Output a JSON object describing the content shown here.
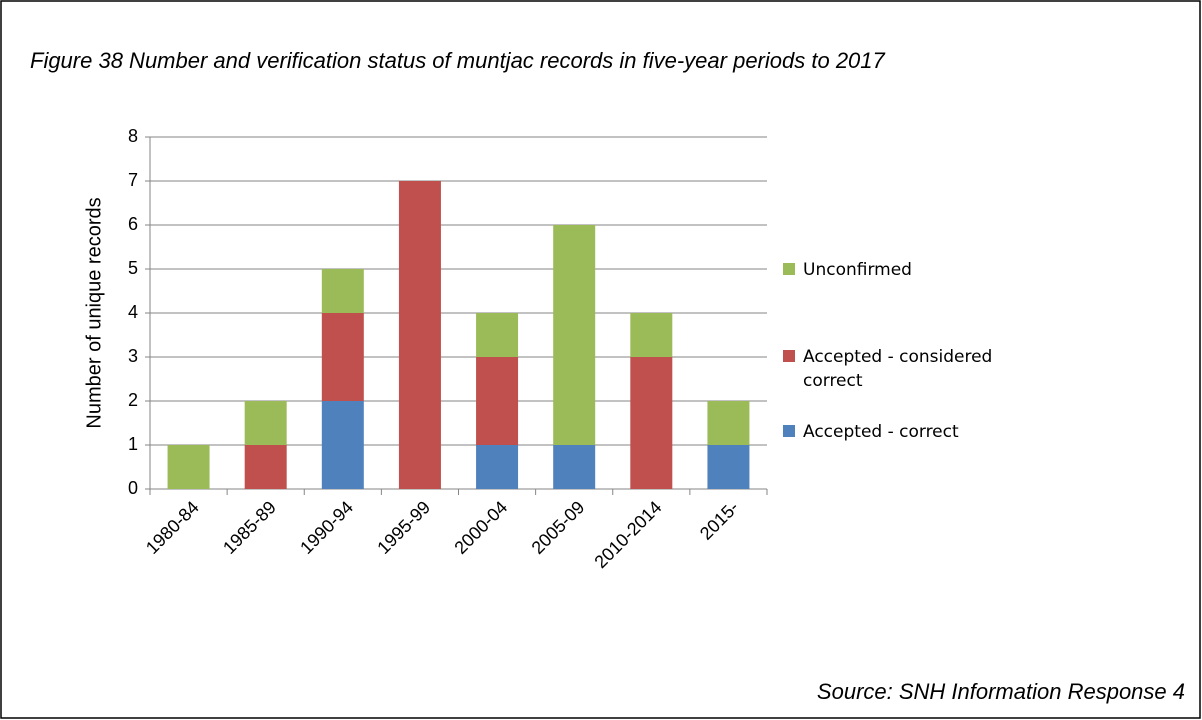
{
  "chart_data": {
    "type": "bar",
    "stacked": true,
    "title": "Figure 38 Number and verification status of muntjac records in five-year periods to 2017",
    "ylabel": "Number of unique records",
    "source": "Source: SNH Information Response 4",
    "categories": [
      "1980-84",
      "1985-89",
      "1990-94",
      "1995-99",
      "2000-04",
      "2005-09",
      "2010-2014",
      "2015-"
    ],
    "series": [
      {
        "name": "Accepted - correct",
        "color": "#4f81bd",
        "values": [
          0,
          0,
          2,
          0,
          1,
          1,
          0,
          1
        ]
      },
      {
        "name": "Accepted - considered correct",
        "color": "#c0504d",
        "values": [
          0,
          1,
          2,
          7,
          2,
          0,
          3,
          0
        ]
      },
      {
        "name": "Unconfirmed",
        "color": "#9bbb59",
        "values": [
          1,
          1,
          1,
          0,
          1,
          5,
          1,
          1
        ]
      }
    ],
    "ylim": [
      0,
      8
    ],
    "yticks": [
      0,
      1,
      2,
      3,
      4,
      5,
      6,
      7,
      8
    ],
    "grid": true,
    "legend": "right"
  }
}
